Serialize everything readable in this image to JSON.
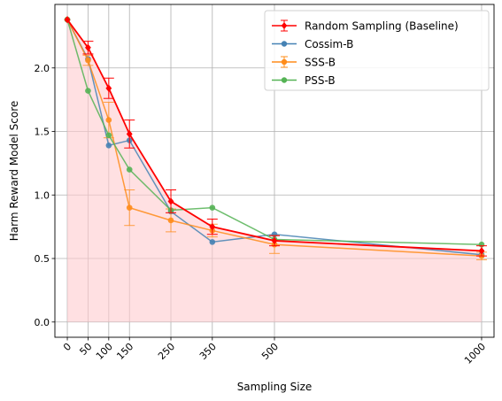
{
  "chart_data": {
    "type": "line",
    "title": "",
    "xlabel": "Sampling Size",
    "ylabel": "Harm Reward Model Score",
    "x": [
      0,
      50,
      100,
      150,
      250,
      350,
      500,
      1000
    ],
    "xticks": [
      "0",
      "50",
      "100",
      "150",
      "250",
      "350",
      "500",
      "1000"
    ],
    "yticks": [
      "0.0",
      "0.5",
      "1.0",
      "1.5",
      "2.0"
    ],
    "xlim": [
      -30,
      1030
    ],
    "ylim": [
      -0.12,
      2.5
    ],
    "grid": true,
    "legend_position": "top-right",
    "shaded_area_under": "Random Sampling (Baseline)",
    "series": [
      {
        "name": "Random Sampling (Baseline)",
        "color": "#ff0000",
        "values": [
          2.38,
          2.16,
          1.84,
          1.48,
          0.95,
          0.75,
          0.64,
          0.56
        ],
        "err": [
          0.0,
          0.05,
          0.08,
          0.11,
          0.09,
          0.06,
          0.04,
          0.04
        ],
        "errorbars": true,
        "marker": "diamond"
      },
      {
        "name": "Cossim-B",
        "color": "#4682b4",
        "values": [
          2.38,
          2.07,
          1.39,
          1.43,
          0.87,
          0.63,
          0.69,
          0.53
        ],
        "errorbars": false,
        "marker": "circle"
      },
      {
        "name": "SSS-B",
        "color": "#ff8c1a",
        "values": [
          2.38,
          2.06,
          1.59,
          0.9,
          0.8,
          0.72,
          0.61,
          0.52
        ],
        "err": [
          0.0,
          0.04,
          0.14,
          0.14,
          0.09,
          0.05,
          0.07,
          0.03
        ],
        "errorbars": true,
        "marker": "circle"
      },
      {
        "name": "PSS-B",
        "color": "#55b355",
        "values": [
          2.38,
          1.82,
          1.47,
          1.2,
          0.88,
          0.9,
          0.65,
          0.61
        ],
        "errorbars": false,
        "marker": "circle"
      }
    ]
  }
}
